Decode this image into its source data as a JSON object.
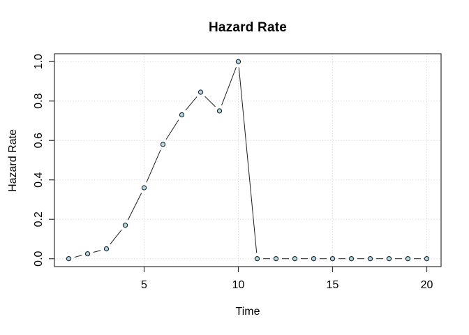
{
  "chart_data": {
    "type": "line",
    "title": "Hazard Rate",
    "xlabel": "Time",
    "ylabel": "Hazard Rate",
    "x": [
      1,
      2,
      3,
      4,
      5,
      6,
      7,
      8,
      9,
      10,
      11,
      12,
      13,
      14,
      15,
      16,
      17,
      18,
      19,
      20
    ],
    "y": [
      0.0,
      0.025,
      0.05,
      0.17,
      0.36,
      0.58,
      0.73,
      0.845,
      0.75,
      1.0,
      0.0,
      0.0,
      0.0,
      0.0,
      0.0,
      0.0,
      0.0,
      0.0,
      0.0,
      0.0
    ],
    "xlim": [
      0.24,
      20.76
    ],
    "ylim": [
      -0.04,
      1.04
    ],
    "xticks": [
      5,
      10,
      15,
      20
    ],
    "yticks": [
      0,
      0.2,
      0.4,
      0.6,
      0.8,
      1
    ],
    "xtick_labels": [
      "5",
      "10",
      "15",
      "20"
    ],
    "ytick_labels": [
      "0.0",
      "0.2",
      "0.4",
      "0.6",
      "0.8",
      "1.0"
    ],
    "grid": true,
    "legend": "none",
    "marker": "circle",
    "line_style": "points-and-segments",
    "colors": {
      "background": "#ffffff",
      "marker_fill": "#add8e6",
      "marker_stroke": "#1f1f1f",
      "line": "#1f1f1f",
      "grid": "#d7d7d7",
      "axis": "#333333",
      "text": "#000000"
    }
  }
}
